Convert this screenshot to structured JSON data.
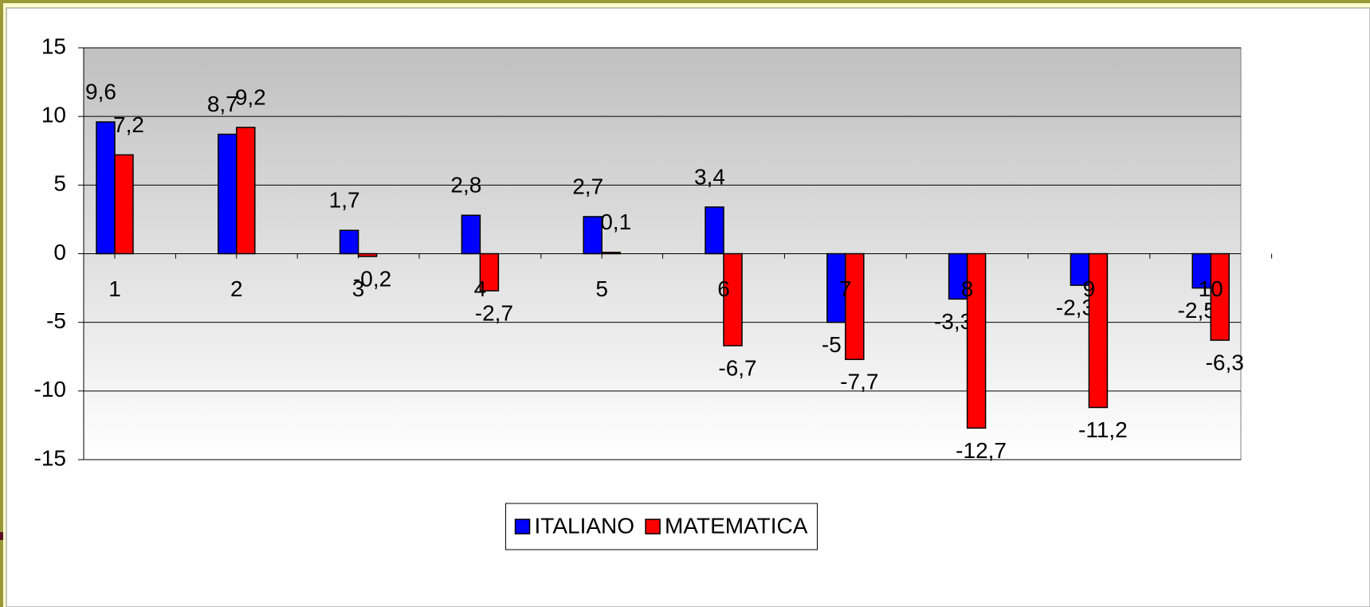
{
  "chart_data": {
    "type": "bar",
    "categories": [
      "1",
      "2",
      "3",
      "4",
      "5",
      "6",
      "7",
      "8",
      "9",
      "10"
    ],
    "series": [
      {
        "name": "ITALIANO",
        "color": "#0000ff",
        "values": [
          9.6,
          8.7,
          1.7,
          2.8,
          2.7,
          3.4,
          -5,
          -3.3,
          -2.3,
          -2.5
        ],
        "value_labels": [
          "9,6",
          "8,7",
          "1,7",
          "2,8",
          "2,7",
          "3,4",
          "-5",
          "-3,3",
          "-2,3",
          "-2,5"
        ]
      },
      {
        "name": "MATEMATICA",
        "color": "#ff0000",
        "values": [
          7.2,
          9.2,
          -0.2,
          -2.7,
          0.1,
          -6.7,
          -7.7,
          -12.7,
          -11.2,
          -6.3
        ],
        "value_labels": [
          "7,2",
          "9,2",
          "-0,2",
          "-2,7",
          "0,1",
          "-6,7",
          "-7,7",
          "-12,7",
          "-11,2",
          "-6,3"
        ]
      }
    ],
    "ylim": [
      -15,
      15
    ],
    "yticks": [
      15,
      10,
      5,
      0,
      -5,
      -10,
      -15
    ],
    "grid": true,
    "legend": "bottom"
  }
}
